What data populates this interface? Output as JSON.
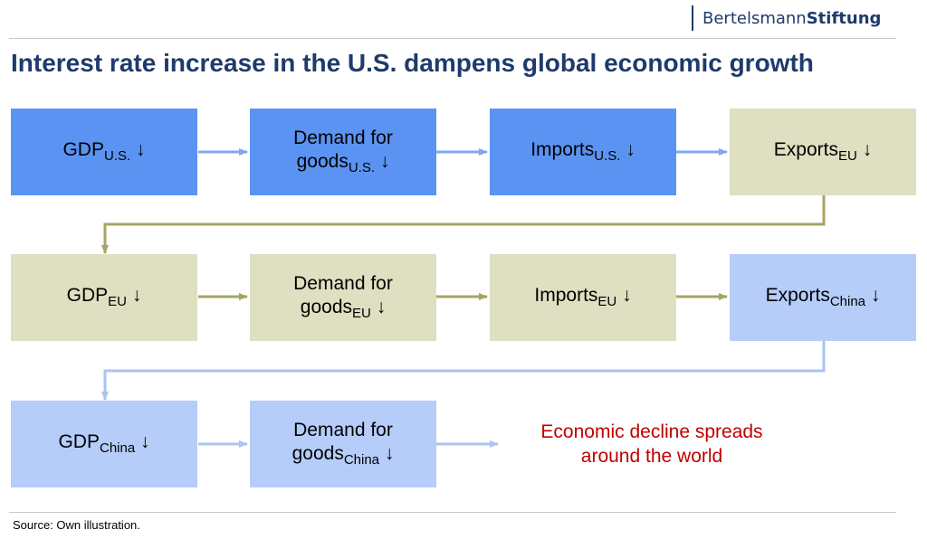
{
  "header": {
    "logo_part1": "Bertelsmann",
    "logo_part2": "Stiftung"
  },
  "title": "Interest rate increase in the U.S. dampens global economic growth",
  "diagram": {
    "down_arrow": "↓",
    "rows": [
      [
        {
          "line1": "",
          "base": "GDP",
          "sub": "U.S.",
          "color": "#5b93f2"
        },
        {
          "line1": "Demand for",
          "base": "goods",
          "sub": "U.S.",
          "color": "#5b93f2"
        },
        {
          "line1": "",
          "base": "Imports",
          "sub": "U.S.",
          "color": "#5b93f2"
        },
        {
          "line1": "",
          "base": "Exports",
          "sub": "EU",
          "color": "#dfdfc1"
        }
      ],
      [
        {
          "line1": "",
          "base": "GDP",
          "sub": "EU",
          "color": "#dfdfc1"
        },
        {
          "line1": "Demand for",
          "base": "goods",
          "sub": "EU",
          "color": "#dfdfc1"
        },
        {
          "line1": "",
          "base": "Imports",
          "sub": "EU",
          "color": "#dfdfc1"
        },
        {
          "line1": "",
          "base": "Exports",
          "sub": "China",
          "color": "#b5cdf8"
        }
      ],
      [
        {
          "line1": "",
          "base": "GDP",
          "sub": "China",
          "color": "#b5cdf8"
        },
        {
          "line1": "Demand for",
          "base": "goods",
          "sub": "China",
          "color": "#b5cdf8"
        }
      ]
    ],
    "conclusion_line1": "Economic decline spreads",
    "conclusion_line2": "around the world",
    "colors": {
      "us": "#5b93f2",
      "eu": "#dfdfc1",
      "china": "#b5cdf8",
      "arrow_us": "#7fa8f0",
      "arrow_eu": "#a6a460",
      "arrow_china": "#a9c3f3",
      "conclusion": "#c00000"
    }
  },
  "footer": {
    "source": "Source: Own illustration."
  }
}
